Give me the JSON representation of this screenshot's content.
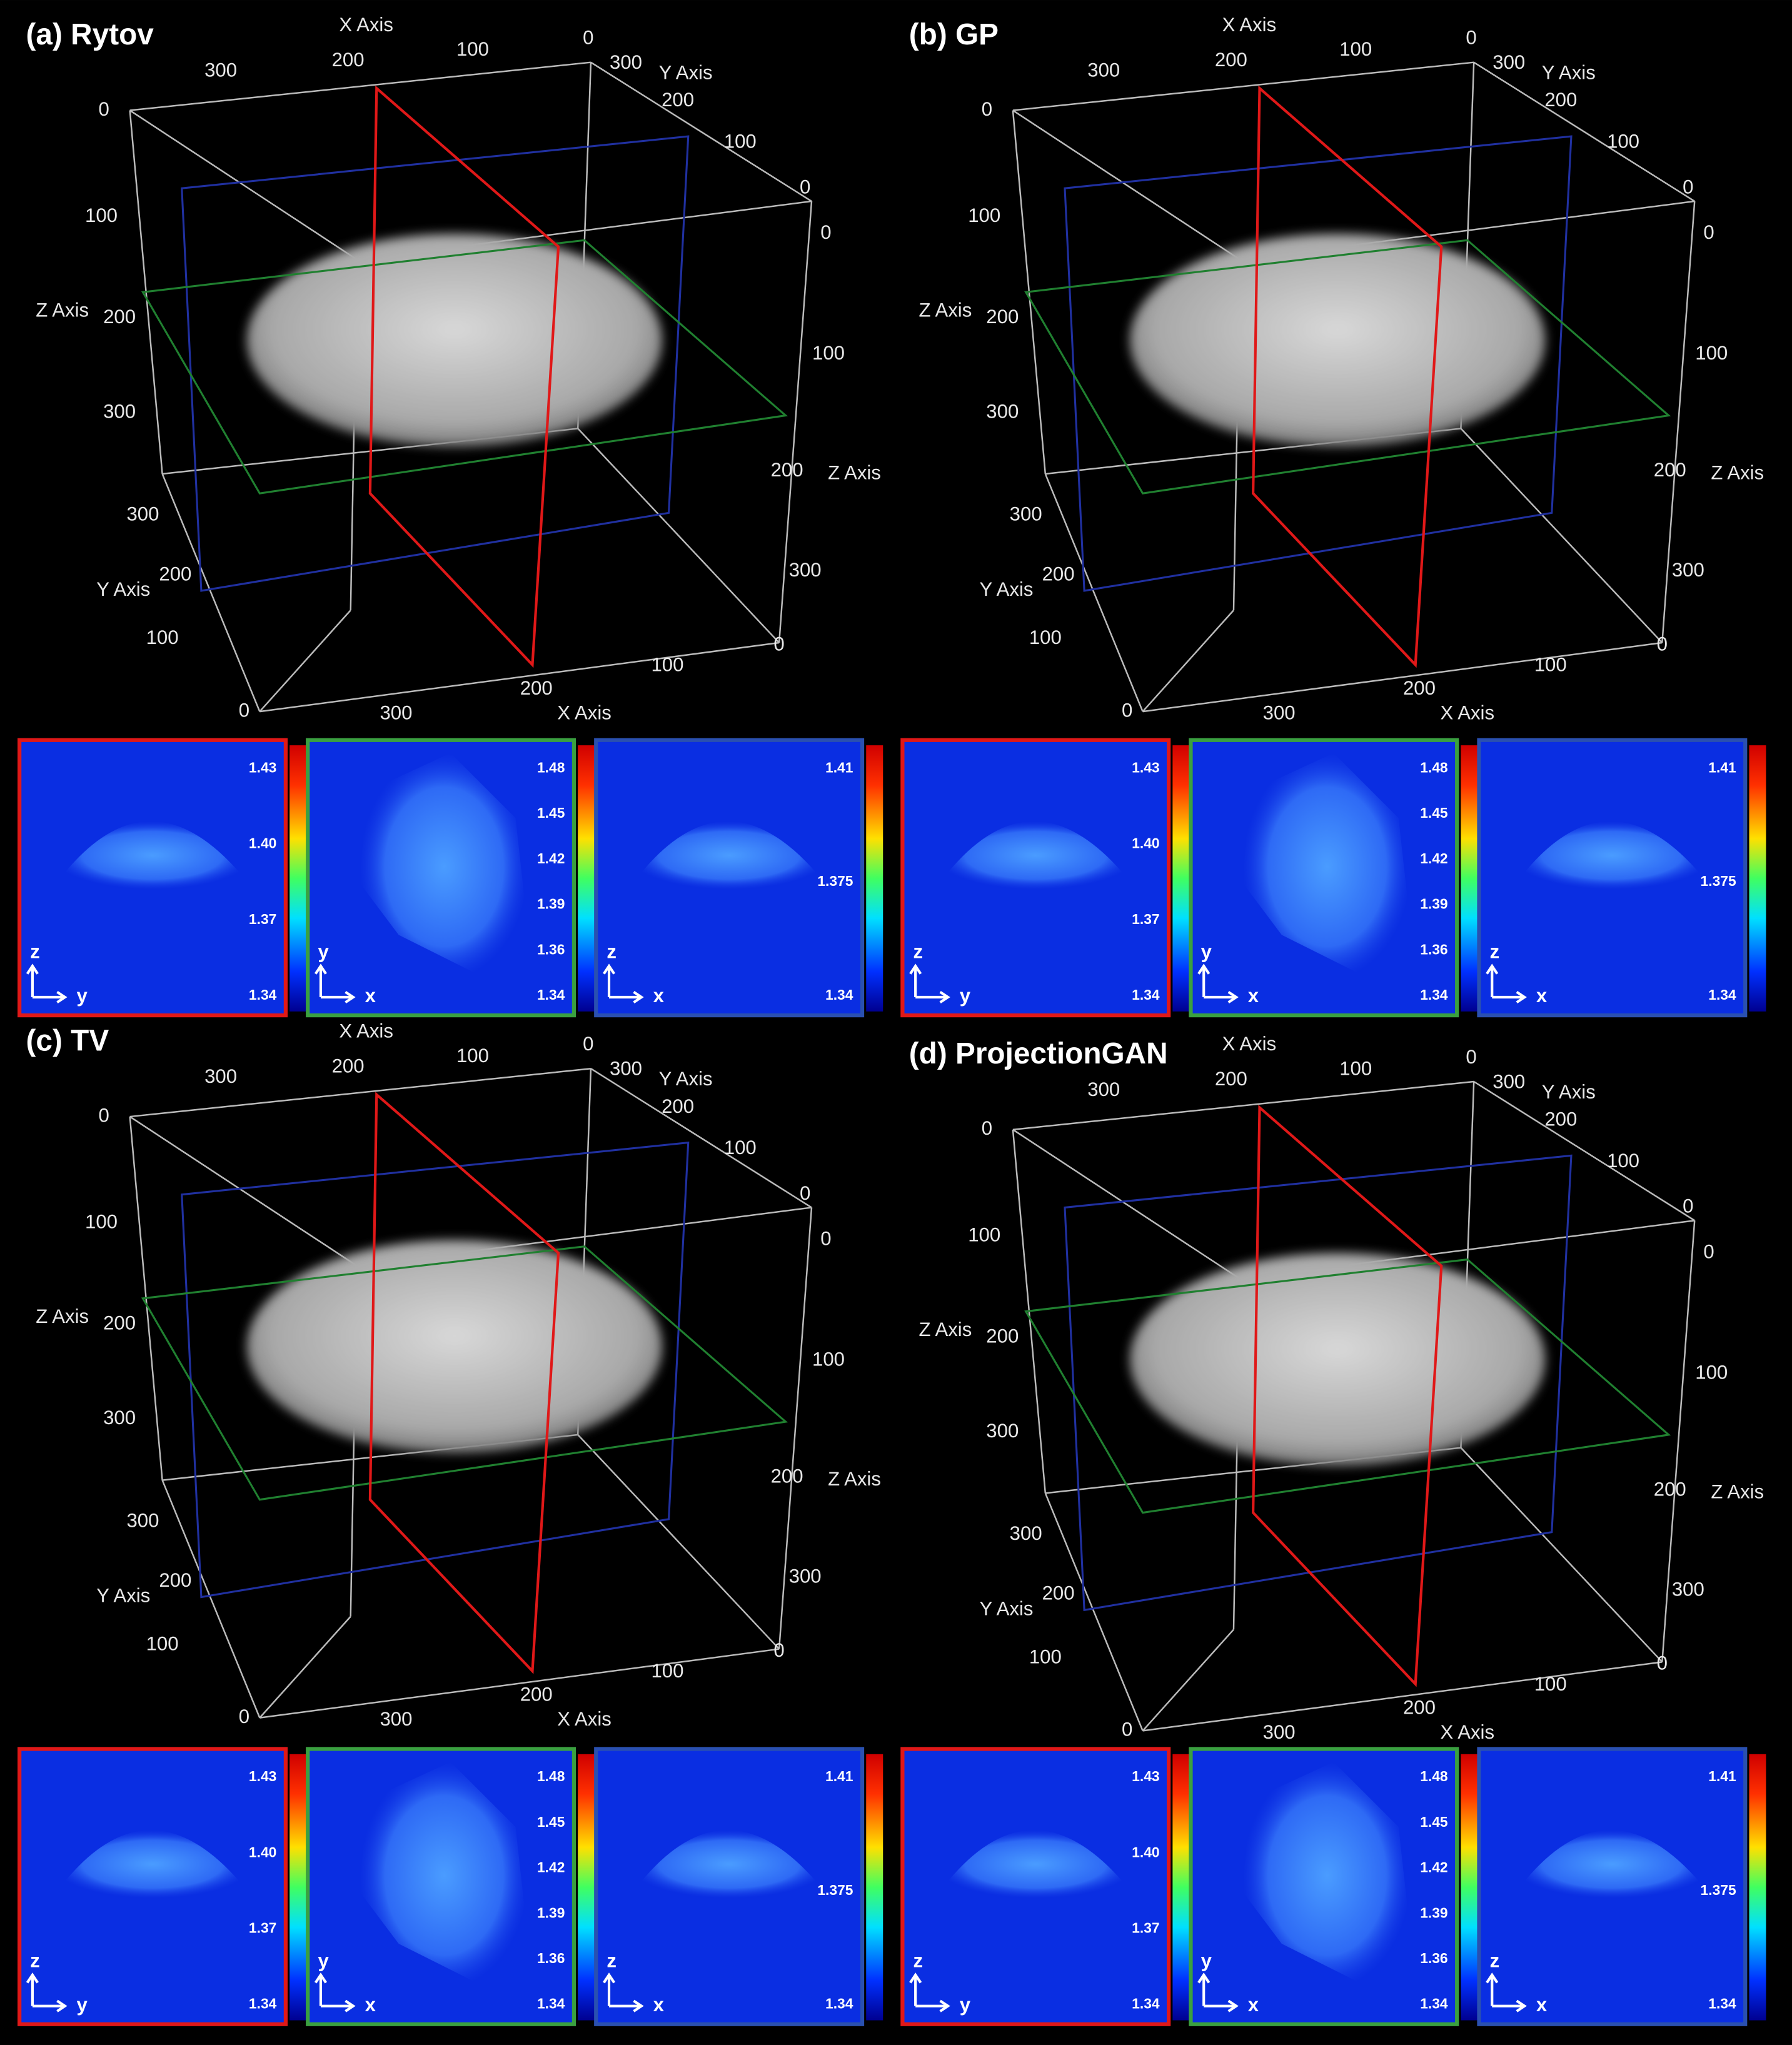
{
  "panels": [
    {
      "title": "(a) Rytov",
      "axis_labels": [
        "X Axis",
        "300",
        "200",
        "100",
        "0",
        "Y Axis",
        "300",
        "200",
        "100",
        "0",
        "0",
        "100",
        "Z Axis",
        "200",
        "300",
        "0",
        "100",
        "200",
        "Z Axis",
        "300",
        "0",
        "300",
        "200",
        "Y Axis",
        "100",
        "0",
        "300",
        "200",
        "X Axis",
        "100"
      ],
      "slices": [
        {
          "ticks": [
            "1.43",
            "1.40",
            "1.37",
            "1.34"
          ],
          "vertical": "z",
          "horizontal": "y"
        },
        {
          "ticks": [
            "1.48",
            "1.45",
            "1.42",
            "1.39",
            "1.36",
            "1.34"
          ],
          "vertical": "y",
          "horizontal": "x"
        },
        {
          "ticks": [
            "1.41",
            "1.375",
            "1.34"
          ],
          "vertical": "z",
          "horizontal": "x"
        }
      ]
    },
    {
      "title": "(b) GP",
      "axis_labels": [
        "X Axis",
        "300",
        "200",
        "100",
        "0",
        "Y Axis",
        "300",
        "200",
        "100",
        "0",
        "0",
        "100",
        "Z Axis",
        "200",
        "300",
        "0",
        "100",
        "200",
        "Z Axis",
        "300",
        "0",
        "300",
        "200",
        "Y Axis",
        "100",
        "0",
        "300",
        "200",
        "X Axis",
        "100"
      ],
      "slices": [
        {
          "ticks": [
            "1.43",
            "1.40",
            "1.37",
            "1.34"
          ],
          "vertical": "z",
          "horizontal": "y"
        },
        {
          "ticks": [
            "1.48",
            "1.45",
            "1.42",
            "1.39",
            "1.36",
            "1.34"
          ],
          "vertical": "y",
          "horizontal": "x"
        },
        {
          "ticks": [
            "1.41",
            "1.375",
            "1.34"
          ],
          "vertical": "z",
          "horizontal": "x"
        }
      ]
    },
    {
      "title": "(c) TV",
      "axis_labels": [
        "X Axis",
        "300",
        "200",
        "100",
        "0",
        "Y Axis",
        "300",
        "200",
        "100",
        "0",
        "0",
        "100",
        "Z Axis",
        "200",
        "300",
        "0",
        "100",
        "200",
        "Z Axis",
        "300",
        "0",
        "300",
        "200",
        "Y Axis",
        "100",
        "0",
        "300",
        "200",
        "X Axis",
        "100"
      ],
      "slices": [
        {
          "ticks": [
            "1.43",
            "1.40",
            "1.37",
            "1.34"
          ],
          "vertical": "z",
          "horizontal": "y"
        },
        {
          "ticks": [
            "1.48",
            "1.45",
            "1.42",
            "1.39",
            "1.36",
            "1.34"
          ],
          "vertical": "y",
          "horizontal": "x"
        },
        {
          "ticks": [
            "1.41",
            "1.375",
            "1.34"
          ],
          "vertical": "z",
          "horizontal": "x"
        }
      ]
    },
    {
      "title": "(d) ProjectionGAN",
      "axis_labels": [
        "X Axis",
        "300",
        "200",
        "100",
        "0",
        "Y Axis",
        "300",
        "200",
        "100",
        "0",
        "0",
        "100",
        "Z Axis",
        "200",
        "300",
        "0",
        "100",
        "200",
        "Z Axis",
        "300",
        "0",
        "300",
        "200",
        "Y Axis",
        "100",
        "0",
        "300",
        "200",
        "X Axis",
        "100"
      ],
      "slices": [
        {
          "ticks": [
            "1.43",
            "1.40",
            "1.37",
            "1.34"
          ],
          "vertical": "z",
          "horizontal": "y"
        },
        {
          "ticks": [
            "1.48",
            "1.45",
            "1.42",
            "1.39",
            "1.36",
            "1.34"
          ],
          "vertical": "y",
          "horizontal": "x"
        },
        {
          "ticks": [
            "1.41",
            "1.375",
            "1.34"
          ],
          "vertical": "z",
          "horizontal": "x"
        }
      ]
    }
  ]
}
